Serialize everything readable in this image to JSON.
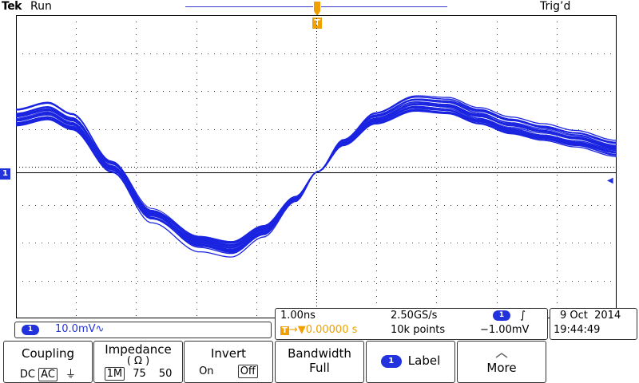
{
  "header": {
    "brand": "Tek",
    "run_state": "Run",
    "trigger_state": "Trig’d"
  },
  "trigger_marker": "T",
  "channel_marker": "1",
  "channel1": {
    "badge": "1",
    "scale": "10.0mV",
    "coupling_symbol": "∿"
  },
  "timebase": {
    "horizontal_scale": "1.00ns",
    "sample_rate": "2.50GS/s",
    "trigger_position": "0.00000 s",
    "record_length": "10k points",
    "trigger_source_badge": "1",
    "trigger_slope_symbol": "∫",
    "trigger_level": "−1.00mV",
    "trigger_pos_prefix": "T",
    "trigger_pos_arrow": "→▼"
  },
  "datetime": {
    "date": "9 Oct  2014",
    "time": "19:44:49"
  },
  "menu": {
    "coupling": {
      "title": "Coupling",
      "options": [
        "DC",
        "AC"
      ],
      "ground_symbol": "⏚",
      "selected": "AC"
    },
    "impedance": {
      "title": "Impedance",
      "unit": "( Ω )",
      "options": [
        "1M",
        "75",
        "50"
      ],
      "selected": "1M"
    },
    "invert": {
      "title": "Invert",
      "options": [
        "On",
        "Off"
      ],
      "selected": "Off"
    },
    "bandwidth": {
      "title": "Bandwidth",
      "value": "Full"
    },
    "label": {
      "badge": "1",
      "title": "Label"
    },
    "more": {
      "title": "More"
    }
  },
  "colors": {
    "trace": "#1a24e0",
    "trigger": "#f0a000",
    "graticule": "#000000"
  },
  "icons": {
    "trigger_position": "trigger-arrow-icon",
    "ground": "ground-icon",
    "more": "up-arrow-icon"
  }
}
